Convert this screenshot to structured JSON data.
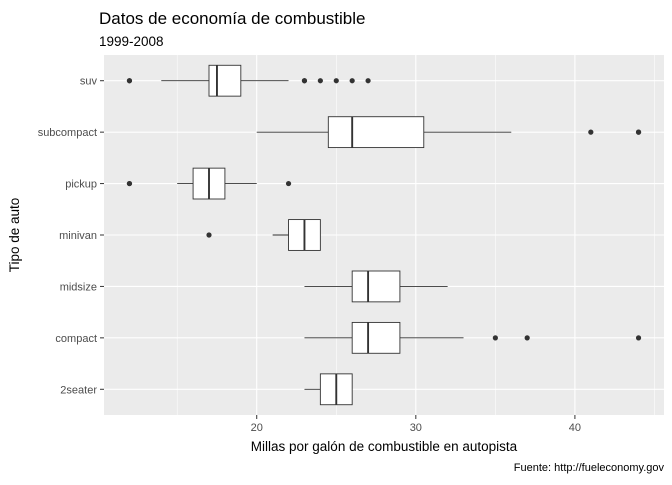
{
  "chart_data": {
    "type": "boxplot",
    "orientation": "horizontal",
    "title": "Datos de economía de combustible",
    "subtitle": "1999-2008",
    "caption": "Fuente: http://fueleconomy.gov",
    "xlabel": "Millas por galón de combustible en autopista",
    "ylabel": "Tipo de auto",
    "xlim": [
      10.4,
      45.6
    ],
    "xticks": [
      20,
      30,
      40
    ],
    "xtick_labels": [
      "20",
      "30",
      "40"
    ],
    "grid": true,
    "panel_background": "#ebebeb",
    "grid_color": "#ffffff",
    "box_fill": "#ffffff",
    "line_color": "#333333",
    "categories": [
      "suv",
      "subcompact",
      "pickup",
      "minivan",
      "midsize",
      "compact",
      "2seater"
    ],
    "boxes": [
      {
        "category": "suv",
        "whisker_low": 14,
        "q1": 17,
        "median": 17.5,
        "q3": 19,
        "whisker_high": 22,
        "outliers": [
          12,
          12,
          23,
          23,
          24,
          25,
          26,
          27
        ]
      },
      {
        "category": "subcompact",
        "whisker_low": 20,
        "q1": 24.5,
        "median": 26,
        "q3": 30.5,
        "whisker_high": 36,
        "outliers": [
          41,
          44,
          44
        ]
      },
      {
        "category": "pickup",
        "whisker_low": 15,
        "q1": 16,
        "median": 17,
        "q3": 18,
        "whisker_high": 20,
        "outliers": [
          12,
          12,
          22
        ]
      },
      {
        "category": "minivan",
        "whisker_low": 21,
        "q1": 22,
        "median": 23,
        "q3": 24,
        "whisker_high": 24,
        "outliers": [
          17
        ]
      },
      {
        "category": "midsize",
        "whisker_low": 23,
        "q1": 26,
        "median": 27,
        "q3": 29,
        "whisker_high": 32,
        "outliers": []
      },
      {
        "category": "compact",
        "whisker_low": 23,
        "q1": 26,
        "median": 27,
        "q3": 29,
        "whisker_high": 33,
        "outliers": [
          35,
          37,
          44
        ]
      },
      {
        "category": "2seater",
        "whisker_low": 23,
        "q1": 24,
        "median": 25,
        "q3": 26,
        "whisker_high": 26,
        "outliers": []
      }
    ]
  }
}
